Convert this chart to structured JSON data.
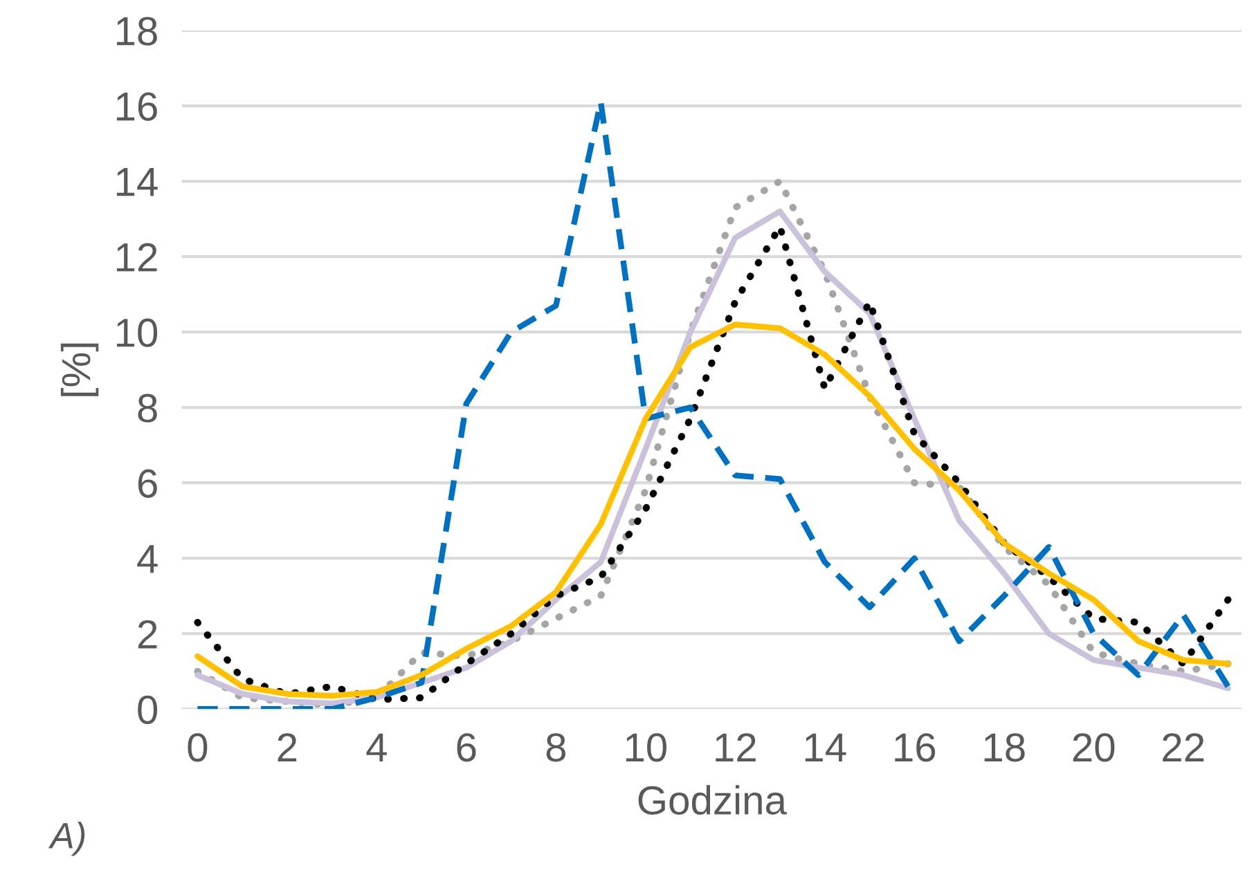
{
  "chart_data": {
    "type": "line",
    "xlabel": "Godzina",
    "ylabel": "[%]",
    "annotations": [
      "A)"
    ],
    "x": [
      0,
      1,
      2,
      3,
      4,
      5,
      6,
      7,
      8,
      9,
      10,
      11,
      12,
      13,
      14,
      15,
      16,
      17,
      18,
      19,
      20,
      21,
      22,
      23
    ],
    "xlim": [
      -0.35,
      23.3
    ],
    "xticks": [
      0,
      2,
      4,
      6,
      8,
      10,
      12,
      14,
      16,
      18,
      20,
      22
    ],
    "ylim": [
      0,
      18
    ],
    "yticks": [
      0,
      2,
      4,
      6,
      8,
      10,
      12,
      14,
      16,
      18
    ],
    "grid": "y",
    "legend": false,
    "series": [
      {
        "color": "#a5a5a5",
        "line_style": "dotted",
        "values": [
          1.0,
          0.3,
          0.2,
          0.1,
          0.3,
          1.5,
          1.4,
          1.8,
          2.4,
          3.0,
          5.8,
          10.0,
          13.3,
          14.0,
          11.6,
          8.3,
          6.0,
          5.9,
          4.3,
          3.3,
          1.5,
          1.2,
          1.0,
          1.2
        ]
      },
      {
        "color": "#ccc1da",
        "line_style": "solid",
        "values": [
          0.9,
          0.4,
          0.2,
          0.15,
          0.3,
          0.7,
          1.1,
          1.8,
          2.9,
          3.9,
          6.9,
          10.0,
          12.5,
          13.2,
          11.6,
          10.5,
          7.7,
          5.0,
          3.6,
          2.0,
          1.3,
          1.1,
          0.9,
          0.55
        ]
      },
      {
        "color": "#000000",
        "line_style": "dotted",
        "values": [
          2.3,
          0.8,
          0.4,
          0.6,
          0.25,
          0.3,
          1.2,
          2.0,
          3.0,
          3.5,
          5.3,
          7.7,
          10.8,
          12.8,
          8.5,
          10.8,
          7.3,
          6.0,
          4.4,
          3.5,
          2.4,
          2.3,
          1.2,
          2.9
        ]
      },
      {
        "color": "#0070c0",
        "line_style": "dashed",
        "values": [
          0,
          0,
          0,
          0,
          0.3,
          0.7,
          8.1,
          10.0,
          10.7,
          16.1,
          7.7,
          8.0,
          6.2,
          6.1,
          3.9,
          2.7,
          4.0,
          1.8,
          3.0,
          4.3,
          2.0,
          0.9,
          2.5,
          0.6
        ]
      },
      {
        "color": "#ffc000",
        "line_style": "solid",
        "values": [
          1.4,
          0.6,
          0.4,
          0.35,
          0.45,
          0.9,
          1.6,
          2.2,
          3.1,
          4.9,
          7.7,
          9.6,
          10.2,
          10.1,
          9.4,
          8.3,
          6.9,
          5.8,
          4.4,
          3.6,
          2.9,
          1.8,
          1.3,
          1.2
        ]
      }
    ]
  }
}
